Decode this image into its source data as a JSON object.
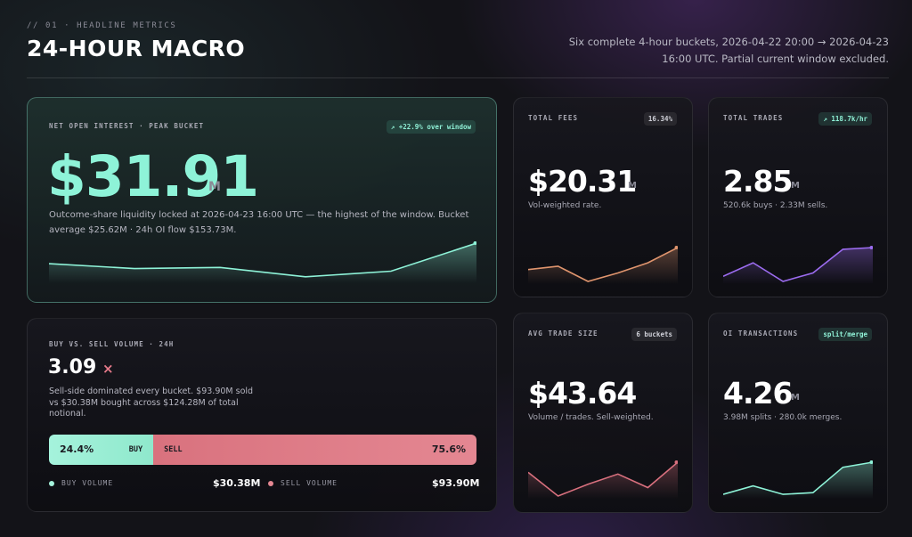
{
  "header": {
    "eyebrow": "// 01 · HEADLINE METRICS",
    "title": "24-HOUR MACRO",
    "subtitle": "Six complete 4-hour buckets, 2026-04-22 20:00 → 2026-04-23 16:00 UTC. Partial current window excluded."
  },
  "hero": {
    "label": "NET OPEN INTEREST · PEAK BUCKET",
    "badge": "↗ +22.9% over window",
    "value": "$31.91",
    "unit": "M",
    "desc": "Outcome-share liquidity locked at 2026-04-23 16:00 UTC — the highest of the window. Bucket average $25.62M · 24h OI flow $153.73M.",
    "color": "#8ef3d8",
    "spark": [
      0.45,
      0.32,
      0.35,
      0.1,
      0.25,
      1.0
    ]
  },
  "fees": {
    "label": "TOTAL FEES",
    "badge": "16.34%",
    "value": "$20.31",
    "unit": "M",
    "desc": "Vol-weighted rate.",
    "color": "#e0956e",
    "spark": [
      0.35,
      0.45,
      0.0,
      0.25,
      0.55,
      1.0
    ]
  },
  "trades": {
    "label": "TOTAL TRADES",
    "badge": "↗ 118.7k/hr",
    "value": "2.85",
    "unit": "M",
    "desc": "520.6k buys · 2.33M sells.",
    "color": "#9c6cf0",
    "spark": [
      0.15,
      0.55,
      0.0,
      0.25,
      0.95,
      1.0
    ]
  },
  "avg_trade": {
    "label": "AVG TRADE SIZE",
    "badge": "6 buckets",
    "value": "$43.64",
    "unit": "",
    "desc": "Volume / trades. Sell-weighted.",
    "color": "#d9707e",
    "spark": [
      0.7,
      0.0,
      0.35,
      0.65,
      0.25,
      1.0
    ]
  },
  "oi_tx": {
    "label": "OI TRANSACTIONS",
    "badge": "split/merge",
    "value": "4.26",
    "unit": "M",
    "desc": "3.98M splits · 280.0k merges.",
    "color": "#8ef3d8",
    "spark": [
      0.05,
      0.3,
      0.05,
      0.1,
      0.85,
      1.0
    ]
  },
  "buysell": {
    "label": "BUY VS. SELL VOLUME · 24H",
    "ratio": "3.09",
    "ratio_icon": "×",
    "desc": "Sell-side dominated every bucket. $93.90M sold vs $30.38M bought across $124.28M of total notional.",
    "buy_share": 24.4,
    "buy_pct": "24.4%",
    "buy_label": "BUY",
    "sell_label": "SELL",
    "sell_pct": "75.6%",
    "legend_buy": "BUY VOLUME",
    "legend_buy_value": "$30.38M",
    "legend_sell": "SELL VOLUME",
    "legend_sell_value": "$93.90M",
    "buy_color": "#a5f3dc",
    "sell_color": "#e48792"
  }
}
